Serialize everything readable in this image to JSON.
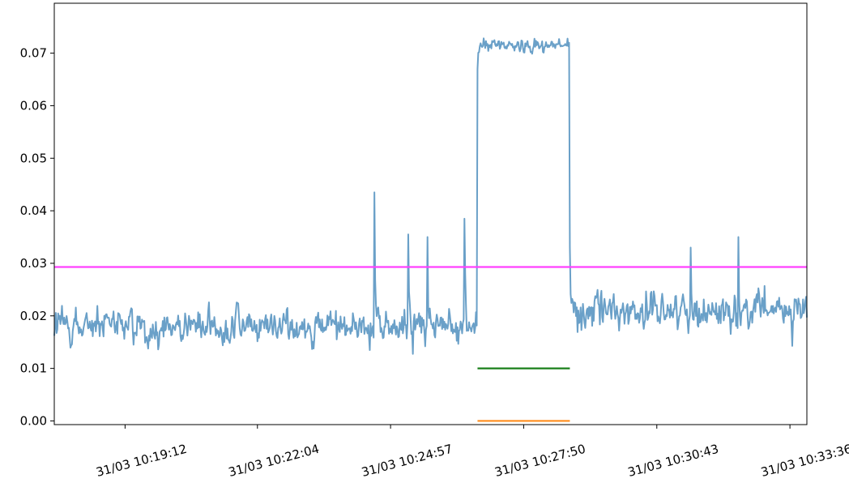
{
  "chart_data": {
    "type": "line",
    "title": "",
    "xlabel": "",
    "ylabel": "",
    "grid": false,
    "legend": "none",
    "x_range": [
      "31/03 10:17:40",
      "31/03 10:33:58"
    ],
    "ylim": [
      -0.0007,
      0.0795
    ],
    "x_ticks": [
      "31/03 10:19:12",
      "31/03 10:22:04",
      "31/03 10:24:57",
      "31/03 10:27:50",
      "31/03 10:30:43",
      "31/03 10:33:36"
    ],
    "y_ticks": [
      "0.00",
      "0.01",
      "0.02",
      "0.03",
      "0.04",
      "0.05",
      "0.06",
      "0.07"
    ],
    "y_tick_values": [
      0.0,
      0.01,
      0.02,
      0.03,
      0.04,
      0.05,
      0.06,
      0.07
    ],
    "series": [
      {
        "color": "#6aa0c8",
        "sample_interval_s": 1,
        "start": "31/03 10:17:40",
        "end": "31/03 10:33:58",
        "segments": [
          {
            "from": "31/03 10:17:40",
            "to": "31/03 10:26:50",
            "base": 0.018,
            "noise": 0.004
          },
          {
            "from": "31/03 10:26:50",
            "to": "31/03 10:28:50",
            "base": 0.0715,
            "noise": 0.0015
          },
          {
            "from": "31/03 10:28:50",
            "to": "31/03 10:33:58",
            "base": 0.021,
            "noise": 0.004
          }
        ],
        "spikes": [
          {
            "x": "31/03 10:24:36",
            "y": 0.0435
          },
          {
            "x": "31/03 10:25:20",
            "y": 0.0355
          },
          {
            "x": "31/03 10:26:33",
            "y": 0.0385
          },
          {
            "x": "31/03 10:25:45",
            "y": 0.035
          },
          {
            "x": "31/03 10:32:29",
            "y": 0.035
          },
          {
            "x": "31/03 10:31:27",
            "y": 0.033
          }
        ]
      },
      {
        "color": "#ff40ff",
        "x": [
          "31/03 10:17:40",
          "31/03 10:33:58"
        ],
        "y": [
          0.0293,
          0.0293
        ]
      },
      {
        "color": "#1a7f1a",
        "x": [
          "31/03 10:26:50",
          "31/03 10:28:50"
        ],
        "y": [
          0.01,
          0.01
        ]
      },
      {
        "color": "#ff8c1a",
        "x": [
          "31/03 10:26:50",
          "31/03 10:28:50"
        ],
        "y": [
          0.0,
          0.0
        ]
      }
    ]
  }
}
